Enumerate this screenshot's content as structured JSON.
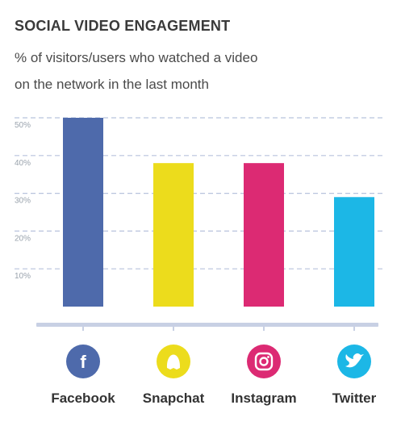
{
  "title": "SOCIAL VIDEO ENGAGEMENT",
  "subtitle_line1": "% of visitors/users who watched a video",
  "subtitle_line2": "on the network in the last month",
  "chart_data": {
    "type": "bar",
    "categories": [
      "Facebook",
      "Snapchat",
      "Instagram",
      "Twitter"
    ],
    "values": [
      50,
      38,
      38,
      29
    ],
    "colors": [
      "#4e6aab",
      "#ecdc1c",
      "#dc2a73",
      "#1cb7e6"
    ],
    "icons": [
      "facebook-icon",
      "snapchat-icon",
      "instagram-icon",
      "twitter-icon"
    ],
    "yticks": [
      10,
      20,
      30,
      40,
      50
    ],
    "ytick_labels": [
      "10%",
      "20%",
      "30%",
      "40%",
      "50%"
    ],
    "ylim": [
      0,
      50
    ],
    "grid": true,
    "gridline_color": "#b8c3dd",
    "axis_color": "#c8d0e4"
  }
}
